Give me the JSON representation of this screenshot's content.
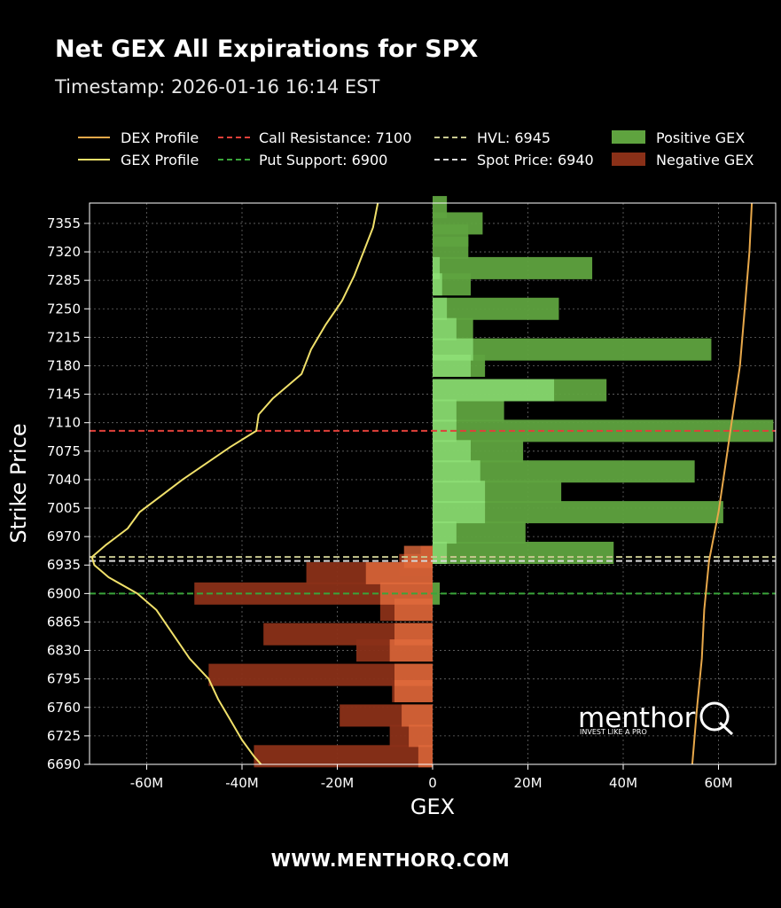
{
  "header": {
    "title": "Net GEX All Expirations for SPX",
    "subtitle": "Timestamp: 2026-01-16 16:14 EST"
  },
  "footer": {
    "url": "WWW.MENTHORQ.COM"
  },
  "brand": {
    "name": "menthor",
    "letter": "Q",
    "tagline": "INVEST LIKE A PRO"
  },
  "colors": {
    "background": "#000000",
    "positive_gex": "#5fa33f",
    "positive_gex_near": "#8fe078",
    "negative_gex": "#8a3018",
    "negative_gex_near": "#e06a3c",
    "dex_profile": "#e8a84a",
    "gex_profile": "#f0e06a",
    "call_resistance": "#e0403a",
    "put_support": "#3aa53a",
    "hvl": "#c8c890",
    "spot_price": "#d8d8d8"
  },
  "chart_data": {
    "type": "bar",
    "orientation": "horizontal",
    "xlabel": "GEX",
    "ylabel": "Strike Price",
    "xlim": [
      -72000000,
      72000000
    ],
    "ylim": [
      6690,
      7380
    ],
    "x_ticks": [
      -60000000,
      -40000000,
      -20000000,
      0,
      20000000,
      40000000,
      60000000
    ],
    "x_tick_labels": [
      "-60M",
      "-40M",
      "-20M",
      "0",
      "20M",
      "40M",
      "60M"
    ],
    "y_ticks": [
      6690,
      6725,
      6760,
      6795,
      6830,
      6865,
      6900,
      6935,
      6970,
      7005,
      7040,
      7075,
      7110,
      7145,
      7180,
      7215,
      7250,
      7285,
      7320,
      7355
    ],
    "y_tick_labels": [
      "6690",
      "6725",
      "6760",
      "6795",
      "6830",
      "6865",
      "6900",
      "6935",
      "6970",
      "7005",
      "7040",
      "7075",
      "7110",
      "7145",
      "7180",
      "7215",
      "7250",
      "7285",
      "7320",
      "7355"
    ],
    "grid": true,
    "legend_position": "top",
    "legend": [
      "DEX Profile",
      "GEX Profile",
      "Call Resistance: 7100",
      "Put Support: 6900",
      "HVL: 6945",
      "Spot Price: 6940",
      "Positive GEX",
      "Negative GEX"
    ],
    "levels": {
      "call_resistance": 7100,
      "put_support": 6900,
      "hvl": 6945,
      "spot_price": 6940
    },
    "series": [
      {
        "name": "Positive GEX",
        "points": [
          {
            "strike": 7375,
            "value": 3000000
          },
          {
            "strike": 7355,
            "value": 10500000
          },
          {
            "strike": 7340,
            "value": 7500000
          },
          {
            "strike": 7325,
            "value": 7500000
          },
          {
            "strike": 7300,
            "value": 33500000
          },
          {
            "strike": 7280,
            "value": 8000000
          },
          {
            "strike": 7250,
            "value": 26500000
          },
          {
            "strike": 7225,
            "value": 8500000
          },
          {
            "strike": 7200,
            "value": 58500000
          },
          {
            "strike": 7180,
            "value": 11000000
          },
          {
            "strike": 7150,
            "value": 36500000
          },
          {
            "strike": 7125,
            "value": 15000000
          },
          {
            "strike": 7100,
            "value": 71500000
          },
          {
            "strike": 7075,
            "value": 19000000
          },
          {
            "strike": 7050,
            "value": 55000000
          },
          {
            "strike": 7025,
            "value": 27000000
          },
          {
            "strike": 7000,
            "value": 61000000
          },
          {
            "strike": 6975,
            "value": 19500000
          },
          {
            "strike": 6950,
            "value": 38000000
          },
          {
            "strike": 6900,
            "value": 1500000
          }
        ]
      },
      {
        "name": "Negative GEX",
        "points": [
          {
            "strike": 6945,
            "value": -2500000
          },
          {
            "strike": 6935,
            "value": -7000000
          },
          {
            "strike": 6925,
            "value": -26500000
          },
          {
            "strike": 6900,
            "value": -50000000
          },
          {
            "strike": 6880,
            "value": -11000000
          },
          {
            "strike": 6850,
            "value": -35500000
          },
          {
            "strike": 6830,
            "value": -16000000
          },
          {
            "strike": 6800,
            "value": -47000000
          },
          {
            "strike": 6780,
            "value": -8500000
          },
          {
            "strike": 6750,
            "value": -19500000
          },
          {
            "strike": 6725,
            "value": -9000000
          },
          {
            "strike": 6700,
            "value": -37500000
          }
        ]
      },
      {
        "name": "Positive GEX",
        "points": [
          {
            "strike": 6950,
            "value": 3000000
          },
          {
            "strike": 6975,
            "value": 5000000
          },
          {
            "strike": 7000,
            "value": 11000000
          },
          {
            "strike": 7025,
            "value": 11000000
          },
          {
            "strike": 7050,
            "value": 10000000
          },
          {
            "strike": 7075,
            "value": 8000000
          },
          {
            "strike": 7100,
            "value": 5000000
          },
          {
            "strike": 7125,
            "value": 5000000
          },
          {
            "strike": 7150,
            "value": 25500000
          },
          {
            "strike": 7180,
            "value": 8000000
          },
          {
            "strike": 7200,
            "value": 8500000
          },
          {
            "strike": 7225,
            "value": 5000000
          },
          {
            "strike": 7250,
            "value": 3000000
          },
          {
            "strike": 7280,
            "value": 2000000
          },
          {
            "strike": 7300,
            "value": 1500000
          }
        ]
      },
      {
        "name": "Negative GEX",
        "points": [
          {
            "strike": 6945,
            "value": -6000000
          },
          {
            "strike": 6925,
            "value": -14000000
          },
          {
            "strike": 6900,
            "value": -11000000
          },
          {
            "strike": 6880,
            "value": -8000000
          },
          {
            "strike": 6850,
            "value": -8000000
          },
          {
            "strike": 6830,
            "value": -9000000
          },
          {
            "strike": 6800,
            "value": -8000000
          },
          {
            "strike": 6780,
            "value": -8000000
          },
          {
            "strike": 6750,
            "value": -6500000
          },
          {
            "strike": 6725,
            "value": -5000000
          },
          {
            "strike": 6700,
            "value": -3000000
          }
        ]
      },
      {
        "name": "GEX Profile",
        "points": [
          {
            "strike": 7380,
            "value": -11500000
          },
          {
            "strike": 7350,
            "value": -12500000
          },
          {
            "strike": 7320,
            "value": -14500000
          },
          {
            "strike": 7290,
            "value": -16500000
          },
          {
            "strike": 7260,
            "value": -19000000
          },
          {
            "strike": 7230,
            "value": -22500000
          },
          {
            "strike": 7200,
            "value": -25500000
          },
          {
            "strike": 7170,
            "value": -27500000
          },
          {
            "strike": 7140,
            "value": -33500000
          },
          {
            "strike": 7120,
            "value": -36500000
          },
          {
            "strike": 7100,
            "value": -37000000
          },
          {
            "strike": 7080,
            "value": -42500000
          },
          {
            "strike": 7060,
            "value": -47500000
          },
          {
            "strike": 7040,
            "value": -52500000
          },
          {
            "strike": 7020,
            "value": -57000000
          },
          {
            "strike": 7000,
            "value": -61500000
          },
          {
            "strike": 6980,
            "value": -64000000
          },
          {
            "strike": 6960,
            "value": -68500000
          },
          {
            "strike": 6945,
            "value": -71500000
          },
          {
            "strike": 6935,
            "value": -71000000
          },
          {
            "strike": 6920,
            "value": -68000000
          },
          {
            "strike": 6900,
            "value": -62000000
          },
          {
            "strike": 6880,
            "value": -58000000
          },
          {
            "strike": 6850,
            "value": -54500000
          },
          {
            "strike": 6820,
            "value": -51000000
          },
          {
            "strike": 6795,
            "value": -47000000
          },
          {
            "strike": 6770,
            "value": -45000000
          },
          {
            "strike": 6745,
            "value": -42500000
          },
          {
            "strike": 6720,
            "value": -40000000
          },
          {
            "strike": 6700,
            "value": -37500000
          },
          {
            "strike": 6690,
            "value": -36000000
          }
        ]
      },
      {
        "name": "DEX Profile",
        "points": [
          {
            "strike": 7380,
            "value": 67000000
          },
          {
            "strike": 7320,
            "value": 66500000
          },
          {
            "strike": 7250,
            "value": 65500000
          },
          {
            "strike": 7180,
            "value": 64500000
          },
          {
            "strike": 7120,
            "value": 63000000
          },
          {
            "strike": 7060,
            "value": 61500000
          },
          {
            "strike": 7000,
            "value": 60000000
          },
          {
            "strike": 6940,
            "value": 58000000
          },
          {
            "strike": 6880,
            "value": 57000000
          },
          {
            "strike": 6820,
            "value": 56500000
          },
          {
            "strike": 6760,
            "value": 55500000
          },
          {
            "strike": 6690,
            "value": 54500000
          }
        ]
      }
    ]
  }
}
